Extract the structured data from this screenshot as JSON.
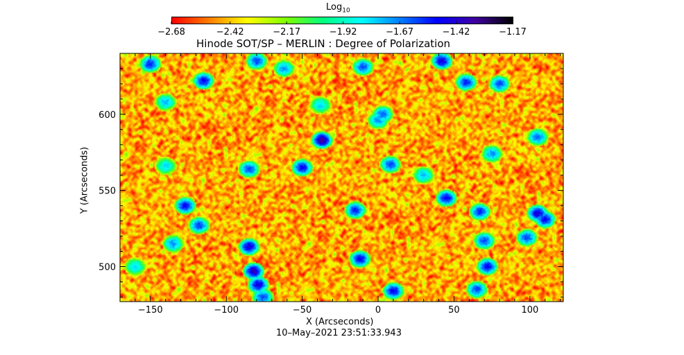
{
  "chart_data": {
    "type": "heatmap",
    "title": "Hinode SOT/SP – MERLIN : Degree of Polarization",
    "xlabel": "X (Arcseconds)",
    "ylabel": "Y (Arcseconds)",
    "xlim": [
      -170,
      122
    ],
    "ylim": [
      477,
      640
    ],
    "x_ticks": [
      -150,
      -100,
      -50,
      0,
      50,
      100
    ],
    "x_tick_labels": [
      "−150",
      "−100",
      "−50",
      "0",
      "50",
      "100"
    ],
    "y_ticks": [
      500,
      550,
      600
    ],
    "y_tick_labels": [
      "500",
      "550",
      "600"
    ],
    "colorbar": {
      "label": "Log",
      "label_sub": "10",
      "range": [
        -2.68,
        -1.17
      ],
      "ticks": [
        -2.68,
        -2.42,
        -2.17,
        -1.92,
        -1.67,
        -1.42,
        -1.17
      ],
      "tick_labels": [
        "−2.68",
        "−2.42",
        "−2.17",
        "−1.92",
        "−1.67",
        "−1.42",
        "−1.17"
      ],
      "colormap": [
        "#ff0000",
        "#ff8000",
        "#ffff00",
        "#80ff00",
        "#00ff80",
        "#00ffff",
        "#0080ff",
        "#0000ff",
        "#4000a0",
        "#000000"
      ]
    },
    "timestamp": "10–May–2021 23:51:33.943",
    "background_value": -2.45,
    "blue_patches": [
      {
        "x": -150,
        "y": 633,
        "v": -1.55
      },
      {
        "x": -140,
        "y": 608,
        "v": -1.75
      },
      {
        "x": -115,
        "y": 622,
        "v": -1.5
      },
      {
        "x": -80,
        "y": 635,
        "v": -1.6
      },
      {
        "x": -62,
        "y": 630,
        "v": -1.7
      },
      {
        "x": -38,
        "y": 606,
        "v": -1.8
      },
      {
        "x": -37,
        "y": 583,
        "v": -1.35
      },
      {
        "x": -50,
        "y": 565,
        "v": -1.5
      },
      {
        "x": -85,
        "y": 564,
        "v": -1.6
      },
      {
        "x": -140,
        "y": 566,
        "v": -1.8
      },
      {
        "x": -127,
        "y": 540,
        "v": -1.5
      },
      {
        "x": -118,
        "y": 527,
        "v": -1.6
      },
      {
        "x": -85,
        "y": 513,
        "v": -1.45
      },
      {
        "x": -82,
        "y": 497,
        "v": -1.4
      },
      {
        "x": -79,
        "y": 488,
        "v": -1.45
      },
      {
        "x": -76,
        "y": 480,
        "v": -1.6
      },
      {
        "x": -12,
        "y": 505,
        "v": -1.5
      },
      {
        "x": -15,
        "y": 537,
        "v": -1.55
      },
      {
        "x": 8,
        "y": 567,
        "v": -1.6
      },
      {
        "x": 3,
        "y": 600,
        "v": -1.65
      },
      {
        "x": -10,
        "y": 631,
        "v": -1.6
      },
      {
        "x": 0,
        "y": 596,
        "v": -1.7
      },
      {
        "x": 42,
        "y": 635,
        "v": -1.45
      },
      {
        "x": 58,
        "y": 621,
        "v": -1.55
      },
      {
        "x": 80,
        "y": 620,
        "v": -1.6
      },
      {
        "x": 45,
        "y": 545,
        "v": -1.5
      },
      {
        "x": 67,
        "y": 536,
        "v": -1.55
      },
      {
        "x": 70,
        "y": 517,
        "v": -1.6
      },
      {
        "x": 72,
        "y": 500,
        "v": -1.5
      },
      {
        "x": 105,
        "y": 535,
        "v": -1.45
      },
      {
        "x": 110,
        "y": 531,
        "v": -1.5
      },
      {
        "x": 98,
        "y": 519,
        "v": -1.6
      },
      {
        "x": 105,
        "y": 585,
        "v": -1.65
      },
      {
        "x": 75,
        "y": 574,
        "v": -1.7
      },
      {
        "x": 10,
        "y": 484,
        "v": -1.5
      },
      {
        "x": 65,
        "y": 485,
        "v": -1.6
      },
      {
        "x": -135,
        "y": 515,
        "v": -1.7
      },
      {
        "x": -160,
        "y": 500,
        "v": -1.8
      },
      {
        "x": 30,
        "y": 560,
        "v": -1.75
      }
    ]
  }
}
